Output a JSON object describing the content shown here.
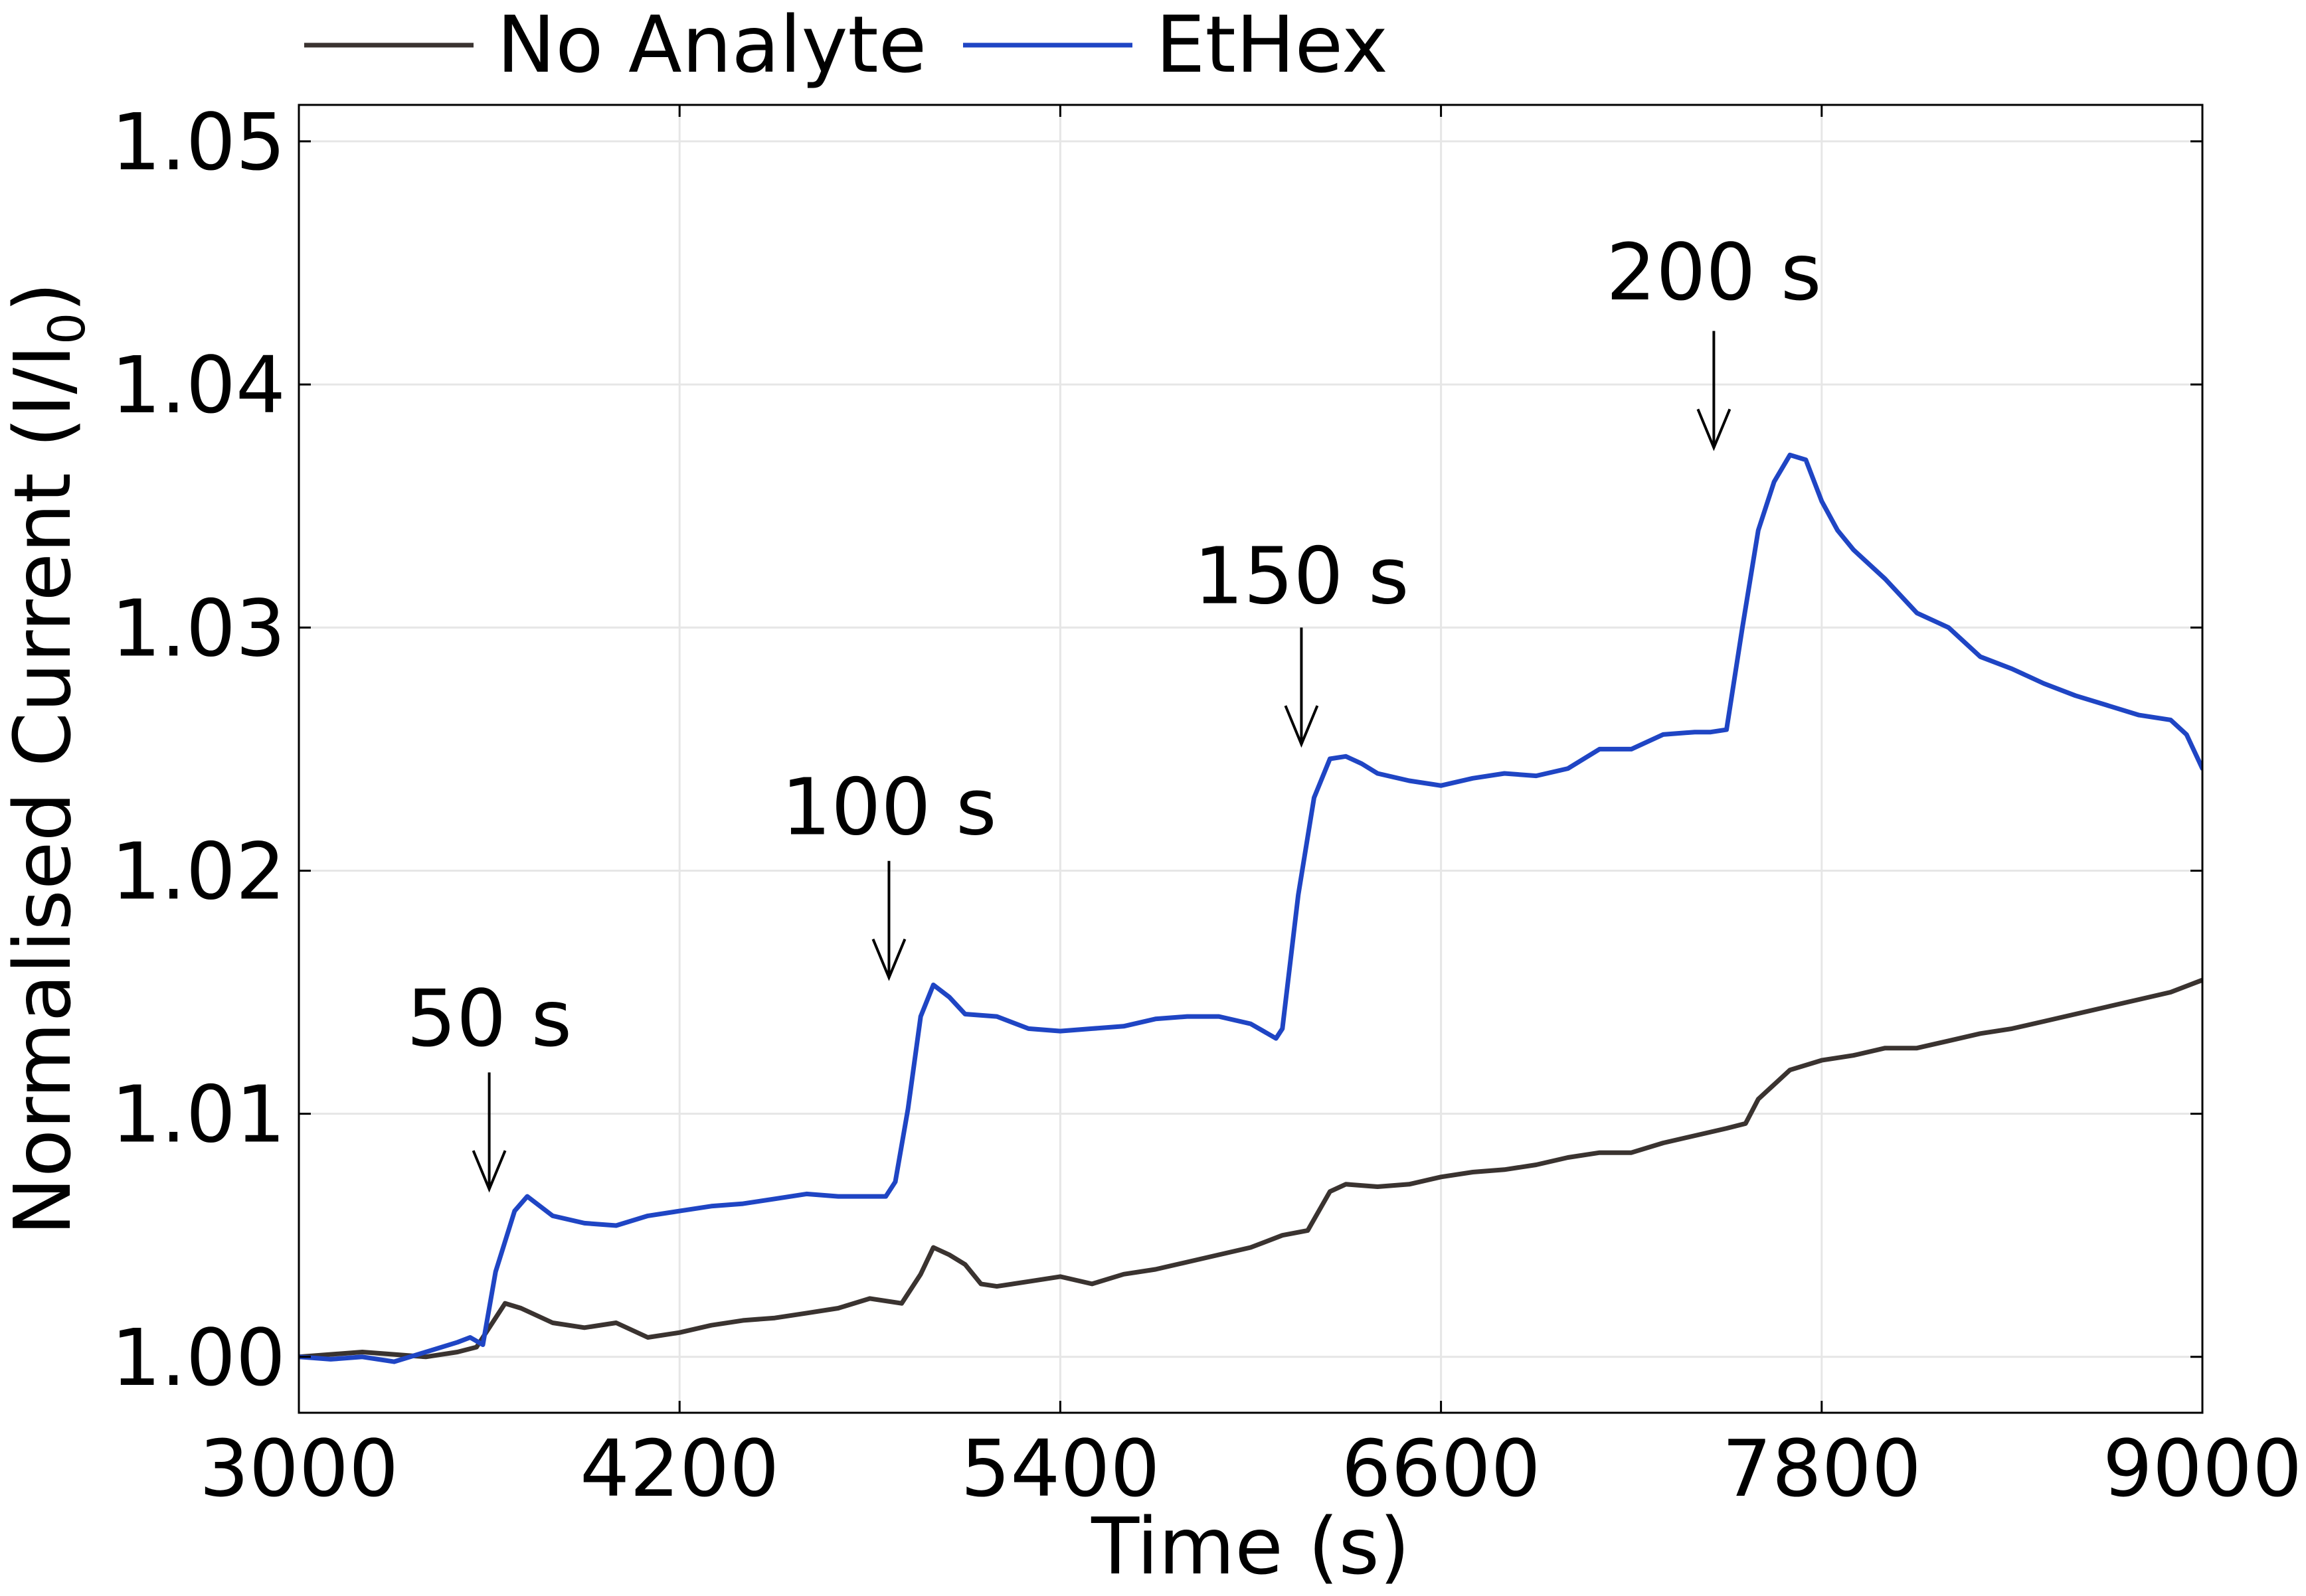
{
  "chart_data": {
    "type": "line",
    "xlabel": "Time (s)",
    "ylabel": "Normalised Current (I/I",
    "ylabel_subscript": "0",
    "ylabel_close": ")",
    "xlim": [
      3000,
      9000
    ],
    "ylim": [
      0.9977,
      1.0515
    ],
    "x_ticks": [
      3000,
      4200,
      5400,
      6600,
      7800,
      9000
    ],
    "y_ticks": [
      1.0,
      1.01,
      1.02,
      1.03,
      1.04,
      1.05
    ],
    "y_tick_labels": [
      "1.00",
      "1.01",
      "1.02",
      "1.03",
      "1.04",
      "1.05"
    ],
    "grid": true,
    "legend_position": "top, outside plot area",
    "series": [
      {
        "name": "No Analyte",
        "color": "#3a3330",
        "x": [
          3000,
          3100,
          3200,
          3300,
          3400,
          3500,
          3560,
          3600,
          3650,
          3700,
          3800,
          3900,
          4000,
          4100,
          4200,
          4300,
          4400,
          4500,
          4600,
          4700,
          4800,
          4900,
          4960,
          5000,
          5050,
          5100,
          5150,
          5200,
          5300,
          5400,
          5500,
          5600,
          5700,
          5800,
          5900,
          6000,
          6100,
          6180,
          6250,
          6300,
          6400,
          6500,
          6600,
          6700,
          6800,
          6900,
          7000,
          7100,
          7200,
          7300,
          7400,
          7500,
          7560,
          7600,
          7700,
          7800,
          7900,
          8000,
          8100,
          8200,
          8300,
          8400,
          8500,
          8600,
          8700,
          8800,
          8900,
          9000
        ],
        "y": [
          1.0,
          1.0001,
          1.0002,
          1.0001,
          1.0,
          1.0002,
          1.0004,
          1.0012,
          1.0022,
          1.002,
          1.0014,
          1.0012,
          1.0014,
          1.0008,
          1.001,
          1.0013,
          1.0015,
          1.0016,
          1.0018,
          1.002,
          1.0024,
          1.0022,
          1.0034,
          1.0045,
          1.0042,
          1.0038,
          1.003,
          1.0029,
          1.0031,
          1.0033,
          1.003,
          1.0034,
          1.0036,
          1.0039,
          1.0042,
          1.0045,
          1.005,
          1.0052,
          1.0068,
          1.0071,
          1.007,
          1.0071,
          1.0074,
          1.0076,
          1.0077,
          1.0079,
          1.0082,
          1.0084,
          1.0084,
          1.0088,
          1.0091,
          1.0094,
          1.0096,
          1.0106,
          1.0118,
          1.0122,
          1.0124,
          1.0127,
          1.0127,
          1.013,
          1.0133,
          1.0135,
          1.0138,
          1.0141,
          1.0144,
          1.0147,
          1.015,
          1.0155
        ]
      },
      {
        "name": "EtHex",
        "color": "#1f45c4",
        "x": [
          3000,
          3100,
          3200,
          3300,
          3400,
          3500,
          3540,
          3580,
          3620,
          3680,
          3720,
          3800,
          3900,
          4000,
          4100,
          4200,
          4300,
          4400,
          4500,
          4600,
          4700,
          4800,
          4850,
          4880,
          4920,
          4960,
          5000,
          5050,
          5100,
          5200,
          5300,
          5400,
          5500,
          5600,
          5700,
          5800,
          5900,
          6000,
          6080,
          6100,
          6150,
          6200,
          6250,
          6300,
          6350,
          6400,
          6500,
          6600,
          6700,
          6800,
          6900,
          7000,
          7100,
          7200,
          7300,
          7400,
          7450,
          7500,
          7550,
          7600,
          7650,
          7700,
          7750,
          7800,
          7850,
          7900,
          8000,
          8100,
          8200,
          8300,
          8400,
          8500,
          8600,
          8700,
          8800,
          8900,
          8950,
          9000
        ],
        "y": [
          1.0,
          0.9999,
          1.0,
          0.9998,
          1.0002,
          1.0006,
          1.0008,
          1.0005,
          1.0035,
          1.006,
          1.0066,
          1.0058,
          1.0055,
          1.0054,
          1.0058,
          1.006,
          1.0062,
          1.0063,
          1.0065,
          1.0067,
          1.0066,
          1.0066,
          1.0066,
          1.0072,
          1.0102,
          1.014,
          1.0153,
          1.0148,
          1.0141,
          1.014,
          1.0135,
          1.0134,
          1.0135,
          1.0136,
          1.0139,
          1.014,
          1.014,
          1.0137,
          1.0131,
          1.0135,
          1.019,
          1.023,
          1.0246,
          1.0247,
          1.0244,
          1.024,
          1.0237,
          1.0235,
          1.0238,
          1.024,
          1.0239,
          1.0242,
          1.025,
          1.025,
          1.0256,
          1.0257,
          1.0257,
          1.0258,
          1.03,
          1.034,
          1.036,
          1.0371,
          1.0369,
          1.0352,
          1.034,
          1.0332,
          1.032,
          1.0306,
          1.03,
          1.0288,
          1.0283,
          1.0277,
          1.0272,
          1.0268,
          1.0264,
          1.0262,
          1.0256,
          1.0242
        ]
      }
    ],
    "annotations": [
      {
        "text": "50 s",
        "x": 3600,
        "y_text": 1.0128,
        "y_arrow_top": 1.0117,
        "y_arrow_tip": 1.0069
      },
      {
        "text": "100 s",
        "x": 4860,
        "y_text": 1.0215,
        "y_arrow_top": 1.0204,
        "y_arrow_tip": 1.0156
      },
      {
        "text": "150 s",
        "x": 6160,
        "y_text": 1.031,
        "y_arrow_top": 1.03,
        "y_arrow_tip": 1.0252
      },
      {
        "text": "200 s",
        "x": 7460,
        "y_text": 1.0435,
        "y_arrow_top": 1.0422,
        "y_arrow_tip": 1.0374
      }
    ]
  }
}
